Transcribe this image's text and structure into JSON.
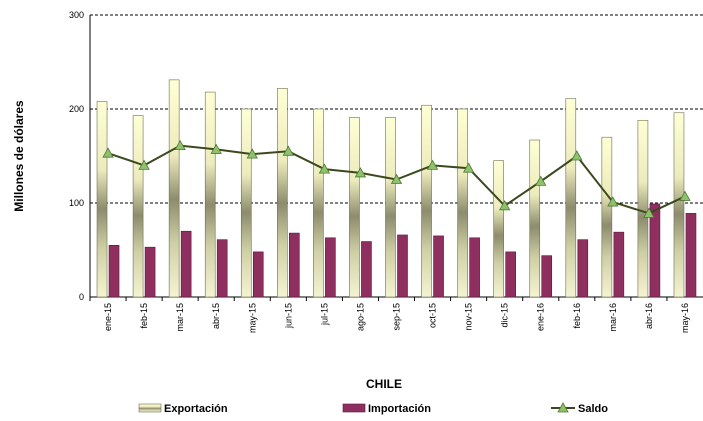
{
  "chart_data": {
    "type": "bar",
    "title": "",
    "xlabel": "CHILE",
    "ylabel": "Millones de dólares",
    "ylim": [
      0,
      300
    ],
    "yticks": [
      0,
      100,
      200,
      300
    ],
    "grid": "horizontal dashed",
    "legend_position": "bottom",
    "categories": [
      "ene-15",
      "feb-15",
      "mar-15",
      "abr-15",
      "may-15",
      "jun-15",
      "jul-15",
      "ago-15",
      "sep-15",
      "oct-15",
      "nov-15",
      "dic-15",
      "ene-16",
      "feb-16",
      "mar-16",
      "abr-16",
      "may-16"
    ],
    "series": [
      {
        "name": "Exportación",
        "type": "bar",
        "color": "#e6e3ad",
        "values": [
          208,
          193,
          231,
          218,
          200,
          222,
          200,
          191,
          191,
          204,
          200,
          145,
          167,
          211,
          170,
          188,
          196
        ]
      },
      {
        "name": "Importación",
        "type": "bar",
        "color": "#8e2f60",
        "values": [
          55,
          53,
          70,
          61,
          48,
          68,
          63,
          59,
          66,
          65,
          63,
          48,
          44,
          61,
          69,
          99,
          89
        ]
      },
      {
        "name": "Saldo",
        "type": "line",
        "color": "#3a4a1e",
        "marker": "triangle",
        "values": [
          153,
          140,
          161,
          157,
          152,
          155,
          136,
          132,
          125,
          140,
          137,
          97,
          123,
          150,
          101,
          89,
          107
        ]
      }
    ]
  }
}
